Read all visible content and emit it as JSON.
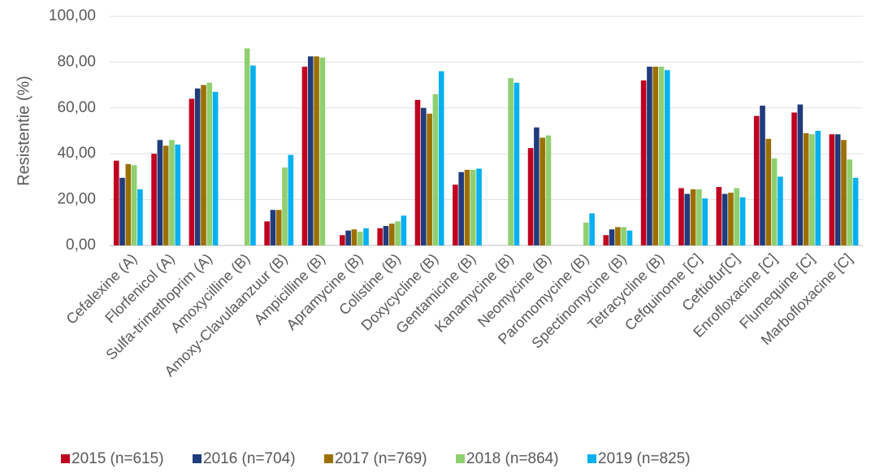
{
  "chart_data": {
    "type": "bar",
    "y_label": "Resistentie (%)",
    "categories": [
      "Cefalexine (A)",
      "Florfenicol (A)",
      "Sulfa-trimethoprim (A)",
      "Amoxycilline (B)",
      "Amoxy-Clavulaanzuur (B)",
      "Ampicilline (B)",
      "Apramycine (B)",
      "Colistine (B)",
      "Doxycycline (B)",
      "Gentamicine (B)",
      "Kanamycine (B)",
      "Neomycine (B)",
      "Paromomycine (B)",
      "Spectinomycine (B)",
      "Tetracycline (B)",
      "Cefquinome [C]",
      "Ceftiofur[C]",
      "Enrofloxacine [C]",
      "Flumequine [C]",
      "Marbofloxacine [C]"
    ],
    "series": [
      {
        "name": "2015 (n=615)",
        "color": "#c00020",
        "values": [
          37,
          40,
          64,
          null,
          10.5,
          78,
          4.5,
          7.5,
          63.5,
          26.5,
          null,
          42.5,
          null,
          4.5,
          72,
          25,
          25.5,
          56.5,
          58,
          48.5
        ]
      },
      {
        "name": "2016 (n=704)",
        "color": "#203c7c",
        "values": [
          29.5,
          46,
          68.5,
          null,
          15.5,
          82.5,
          6.5,
          8.5,
          60,
          32,
          null,
          51.5,
          null,
          7,
          78,
          22.5,
          22.5,
          61,
          61.5,
          48.5
        ]
      },
      {
        "name": "2017 (n=769)",
        "color": "#9c7000",
        "values": [
          35.5,
          43.5,
          70,
          null,
          15.5,
          82.5,
          7,
          9.5,
          57.5,
          33,
          null,
          47,
          null,
          8,
          78,
          24.5,
          23,
          46.5,
          49,
          46
        ]
      },
      {
        "name": "2018 (n=864)",
        "color": "#8fcf70",
        "values": [
          35,
          46,
          71,
          86,
          34,
          82,
          6,
          10.5,
          66,
          33,
          73,
          48,
          10,
          8,
          78,
          24.5,
          25,
          38,
          48.5,
          37.5
        ]
      },
      {
        "name": "2019 (n=825)",
        "color": "#00b0f0",
        "values": [
          24.5,
          44,
          67,
          78.5,
          39.5,
          null,
          7.5,
          13,
          76,
          33.5,
          71,
          null,
          14,
          6.5,
          76.5,
          20.5,
          21,
          30,
          50,
          29.5
        ]
      }
    ],
    "ylim": [
      0,
      100
    ],
    "yticks": [
      {
        "value": 0,
        "label": "0,00"
      },
      {
        "value": 20,
        "label": "20,00"
      },
      {
        "value": 40,
        "label": "40,00"
      },
      {
        "value": 60,
        "label": "60,00"
      },
      {
        "value": 80,
        "label": "80,00"
      },
      {
        "value": 100,
        "label": "100,00"
      }
    ],
    "grid": true,
    "legend": "bottom"
  }
}
